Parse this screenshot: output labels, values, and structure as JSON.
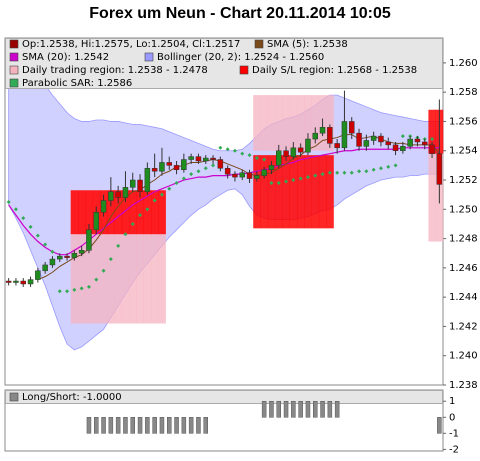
{
  "chart_data": [
    {
      "type": "candlestick",
      "title": "Forex um Neun - Chart 20.11.2014 10:05",
      "ylim": [
        1.238,
        1.2617
      ],
      "yticks": [
        1.238,
        {
          "value": 1.24,
          "label": "1.240"
        },
        1.242,
        1.244,
        1.246,
        1.248,
        {
          "value": 1.25,
          "label": "1.250"
        },
        1.252,
        1.254,
        1.256,
        1.258,
        {
          "value": 1.26,
          "label": "1.260"
        }
      ],
      "candles": {
        "name": "Op:1.2538, Hi:1.2575, Lo:1.2504, Cl:1.2517",
        "color": "#990000",
        "up_color": "#1e8c1e",
        "down_color": "#cc0000",
        "open": [
          1.2451,
          1.245,
          1.2451,
          1.2449,
          1.2452,
          1.2458,
          1.2462,
          1.2466,
          1.2468,
          1.2467,
          1.247,
          1.2472,
          1.2486,
          1.2498,
          1.2506,
          1.2512,
          1.2508,
          1.2515,
          1.252,
          1.2512,
          1.2528,
          1.2526,
          1.2532,
          1.253,
          1.2527,
          1.2534,
          1.2536,
          1.2533,
          1.2535,
          1.2534,
          1.2528,
          1.2524,
          1.2522,
          1.2525,
          1.2521,
          1.2523,
          1.2527,
          1.253,
          1.254,
          1.2536,
          1.2542,
          1.2539,
          1.2548,
          1.2552,
          1.2556,
          1.2545,
          1.2542,
          1.256,
          1.2552,
          1.2543,
          1.2547,
          1.255,
          1.2546,
          1.2544,
          1.254,
          1.2543,
          1.2548,
          1.2546,
          1.2544,
          1.2538
        ],
        "high": [
          1.2453,
          1.2453,
          1.2453,
          1.2454,
          1.246,
          1.2464,
          1.2468,
          1.247,
          1.247,
          1.2472,
          1.2475,
          1.249,
          1.2502,
          1.251,
          1.2522,
          1.2516,
          1.2526,
          1.2525,
          1.2524,
          1.2532,
          1.2538,
          1.2542,
          1.2536,
          1.2533,
          1.2538,
          1.2538,
          1.2538,
          1.2537,
          1.2537,
          1.2536,
          1.253,
          1.2526,
          1.2527,
          1.2527,
          1.2526,
          1.2529,
          1.2533,
          1.2544,
          1.2543,
          1.2546,
          1.2545,
          1.2552,
          1.2556,
          1.2562,
          1.2558,
          1.2548,
          1.2581,
          1.2563,
          1.2555,
          1.2551,
          1.2553,
          1.2552,
          1.2549,
          1.2546,
          1.2546,
          1.255,
          1.255,
          1.2548,
          1.2546,
          1.2575
        ],
        "low": [
          1.2448,
          1.2448,
          1.2447,
          1.2447,
          1.245,
          1.2456,
          1.246,
          1.2464,
          1.2465,
          1.2465,
          1.2468,
          1.247,
          1.2483,
          1.2495,
          1.2502,
          1.2504,
          1.2505,
          1.2512,
          1.2508,
          1.251,
          1.2522,
          1.2523,
          1.2527,
          1.2524,
          1.2525,
          1.2531,
          1.2531,
          1.2531,
          1.2531,
          1.2526,
          1.2521,
          1.2519,
          1.252,
          1.2518,
          1.2519,
          1.2521,
          1.2524,
          1.2528,
          1.2533,
          1.2534,
          1.2536,
          1.2537,
          1.2545,
          1.255,
          1.2542,
          1.2538,
          1.254,
          1.2548,
          1.254,
          1.254,
          1.2544,
          1.2543,
          1.2541,
          1.2537,
          1.2538,
          1.2541,
          1.2543,
          1.2541,
          1.2535,
          1.2504
        ],
        "close": [
          1.245,
          1.2451,
          1.2449,
          1.2452,
          1.2458,
          1.2462,
          1.2466,
          1.2468,
          1.2467,
          1.247,
          1.2472,
          1.2486,
          1.2498,
          1.2506,
          1.2512,
          1.2508,
          1.2515,
          1.252,
          1.2512,
          1.2528,
          1.2526,
          1.2532,
          1.253,
          1.2527,
          1.2534,
          1.2536,
          1.2533,
          1.2535,
          1.2534,
          1.2528,
          1.2524,
          1.2522,
          1.2525,
          1.2521,
          1.2523,
          1.2527,
          1.253,
          1.254,
          1.2536,
          1.2542,
          1.2539,
          1.2548,
          1.2552,
          1.2556,
          1.2545,
          1.2542,
          1.256,
          1.2552,
          1.2543,
          1.2547,
          1.255,
          1.2546,
          1.2544,
          1.254,
          1.2543,
          1.2548,
          1.2546,
          1.2544,
          1.2538,
          1.2517
        ]
      },
      "sma5": {
        "name": "SMA (5): 1.2538",
        "color": "#7a4a1a",
        "values": [
          null,
          null,
          null,
          null,
          1.2452,
          1.2454,
          1.2457,
          1.2461,
          1.2464,
          1.2467,
          1.2469,
          1.2473,
          1.2479,
          1.2486,
          1.2495,
          1.2502,
          1.2508,
          1.2512,
          1.2513,
          1.2517,
          1.252,
          1.2524,
          1.2526,
          1.2529,
          1.253,
          1.2532,
          1.2532,
          1.2533,
          1.2534,
          1.2533,
          1.2531,
          1.2529,
          1.2527,
          1.2524,
          1.2523,
          1.2524,
          1.2525,
          1.2528,
          1.2531,
          1.2535,
          1.2537,
          1.2541,
          1.2543,
          1.2547,
          1.2548,
          1.2549,
          1.2551,
          1.2551,
          1.2548,
          1.2549,
          1.255,
          1.2548,
          1.2546,
          1.2545,
          1.2545,
          1.2544,
          1.2544,
          1.2544,
          1.2544,
          1.2538
        ]
      },
      "sma20": {
        "name": "SMA (20): 1.2542",
        "color": "#cc00cc",
        "values": [
          1.2503,
          1.2496,
          1.2489,
          1.2483,
          1.2478,
          1.2474,
          1.2471,
          1.2469,
          1.2469,
          1.2472,
          1.2475,
          1.2479,
          1.2483,
          1.2487,
          1.2491,
          1.2495,
          1.2499,
          1.2503,
          1.2506,
          1.2509,
          1.2512,
          1.2514,
          1.2516,
          1.2518,
          1.252,
          1.2521,
          1.2522,
          1.2522,
          1.2523,
          1.2523,
          1.2523,
          1.2524,
          1.2524,
          1.2525,
          1.2526,
          1.2527,
          1.2528,
          1.253,
          1.2531,
          1.2532,
          1.2534,
          1.2535,
          1.2536,
          1.2537,
          1.2538,
          1.2539,
          1.254,
          1.254,
          1.2541,
          1.2541,
          1.2541,
          1.2541,
          1.2541,
          1.2541,
          1.2542,
          1.2542,
          1.2542,
          1.2542,
          1.2542,
          1.2542
        ]
      },
      "bollinger": {
        "name": "Bollinger (20, 2): 1.2524 - 1.2560",
        "color": "#9999ff",
        "upper": [
          1.2616,
          1.261,
          1.2603,
          1.2596,
          1.259,
          1.2585,
          1.2578,
          1.2572,
          1.2566,
          1.2562,
          1.256,
          1.256,
          1.2561,
          1.2561,
          1.256,
          1.256,
          1.2559,
          1.2558,
          1.2558,
          1.2557,
          1.2556,
          1.2555,
          1.2553,
          1.2551,
          1.2549,
          1.2547,
          1.2545,
          1.2543,
          1.2541,
          1.254,
          1.254,
          1.254,
          1.2541,
          1.2545,
          1.255,
          1.2555,
          1.2558,
          1.256,
          1.2562,
          1.2563,
          1.2565,
          1.2568,
          1.2571,
          1.2575,
          1.2578,
          1.2578,
          1.2576,
          1.2574,
          1.2572,
          1.257,
          1.2568,
          1.2566,
          1.2565,
          1.2564,
          1.2563,
          1.2562,
          1.2561,
          1.256,
          1.256,
          1.256
        ],
        "lower": [
          1.2503,
          1.2494,
          1.2484,
          1.2472,
          1.246,
          1.2448,
          1.2434,
          1.242,
          1.2408,
          1.2404,
          1.2406,
          1.241,
          1.2414,
          1.2418,
          1.2426,
          1.2434,
          1.2442,
          1.245,
          1.2457,
          1.2463,
          1.2469,
          1.2475,
          1.2481,
          1.2486,
          1.2491,
          1.2496,
          1.25,
          1.2503,
          1.2507,
          1.251,
          1.2513,
          1.2514,
          1.251,
          1.2502,
          1.2496,
          1.2494,
          1.2493,
          1.2493,
          1.2493,
          1.2493,
          1.2494,
          1.2495,
          1.2497,
          1.2499,
          1.25,
          1.2503,
          1.2507,
          1.251,
          1.2513,
          1.2516,
          1.2518,
          1.252,
          1.2521,
          1.2522,
          1.2522,
          1.2523,
          1.2523,
          1.2524,
          1.2524,
          1.2524
        ]
      },
      "trading_region": {
        "name": "Daily trading region: 1.2538 - 1.2478",
        "color": "#f5b3c0",
        "high": [
          null,
          null,
          null,
          null,
          null,
          null,
          null,
          null,
          null,
          1.2513,
          1.2513,
          1.2513,
          1.2513,
          1.2513,
          1.2513,
          1.2513,
          1.2513,
          1.2513,
          1.2513,
          1.2513,
          1.2513,
          1.2513,
          null,
          null,
          null,
          null,
          null,
          null,
          null,
          null,
          null,
          null,
          null,
          null,
          1.2578,
          1.2578,
          1.2578,
          1.2578,
          1.2578,
          1.2578,
          1.2578,
          1.2578,
          1.2578,
          1.2578,
          1.2578,
          null,
          null,
          null,
          null,
          null,
          null,
          null,
          null,
          null,
          null,
          null,
          null,
          null,
          1.2538,
          1.2538
        ],
        "low": [
          null,
          null,
          null,
          null,
          null,
          null,
          null,
          null,
          null,
          1.2422,
          1.2422,
          1.2422,
          1.2422,
          1.2422,
          1.2422,
          1.2422,
          1.2422,
          1.2422,
          1.2422,
          1.2422,
          1.2422,
          1.2422,
          null,
          null,
          null,
          null,
          null,
          null,
          null,
          null,
          null,
          null,
          null,
          null,
          1.254,
          1.254,
          1.254,
          1.254,
          1.254,
          1.254,
          1.254,
          1.254,
          1.254,
          1.254,
          1.254,
          null,
          null,
          null,
          null,
          null,
          null,
          null,
          null,
          null,
          null,
          null,
          null,
          null,
          1.2478,
          1.2478
        ]
      },
      "sl_region": {
        "name": "Daily S/L region: 1.2568 - 1.2538",
        "color": "#ff0000",
        "high": [
          null,
          null,
          null,
          null,
          null,
          null,
          null,
          null,
          null,
          1.2513,
          1.2513,
          1.2513,
          1.2513,
          1.2513,
          1.2513,
          1.2513,
          1.2513,
          1.2513,
          1.2513,
          1.2513,
          1.2513,
          1.2513,
          null,
          null,
          null,
          null,
          null,
          null,
          null,
          null,
          null,
          null,
          null,
          null,
          1.2537,
          1.2537,
          1.2537,
          1.2537,
          1.2537,
          1.2537,
          1.2537,
          1.2537,
          1.2537,
          1.2537,
          1.2537,
          null,
          null,
          null,
          null,
          null,
          null,
          null,
          null,
          null,
          null,
          null,
          null,
          null,
          1.2568,
          1.2568
        ],
        "low": [
          null,
          null,
          null,
          null,
          null,
          null,
          null,
          null,
          null,
          1.2483,
          1.2483,
          1.2483,
          1.2483,
          1.2483,
          1.2483,
          1.2483,
          1.2483,
          1.2483,
          1.2483,
          1.2483,
          1.2483,
          1.2483,
          null,
          null,
          null,
          null,
          null,
          null,
          null,
          null,
          null,
          null,
          null,
          null,
          1.2487,
          1.2487,
          1.2487,
          1.2487,
          1.2487,
          1.2487,
          1.2487,
          1.2487,
          1.2487,
          1.2487,
          1.2487,
          null,
          null,
          null,
          null,
          null,
          null,
          null,
          null,
          null,
          null,
          null,
          null,
          null,
          1.2538,
          1.2538
        ]
      },
      "sar": {
        "name": "Parabolic SAR: 1.2586",
        "color": "#33aa55",
        "values": [
          1.2505,
          1.25,
          1.2494,
          1.2488,
          1.2482,
          1.2476,
          1.2471,
          1.2444,
          1.2444,
          1.2445,
          1.2446,
          1.2447,
          1.2452,
          1.2458,
          1.2466,
          1.2475,
          1.2483,
          1.249,
          1.2496,
          1.25,
          1.2506,
          1.251,
          1.2514,
          1.2518,
          1.2521,
          1.2524,
          1.2526,
          1.2528,
          1.253,
          1.2542,
          1.2541,
          1.254,
          1.2538,
          1.2537,
          1.2535,
          1.2534,
          1.2518,
          1.2518,
          1.2519,
          1.252,
          1.2521,
          1.2522,
          1.2523,
          1.2524,
          1.2525,
          1.2525,
          1.2525,
          1.2525,
          1.2526,
          1.2526,
          1.2527,
          1.2528,
          1.2529,
          1.253,
          1.255,
          1.255,
          1.2549,
          1.2548,
          1.2548,
          1.2586
        ]
      }
    },
    {
      "type": "bar",
      "ylim": [
        -2.1,
        1.7
      ],
      "yticks": [
        1,
        0,
        -1,
        -2
      ],
      "series": [
        {
          "name": "Long/Short: -1.0000",
          "color": "#888888",
          "values": [
            0,
            0,
            0,
            0,
            0,
            0,
            0,
            0,
            0,
            0,
            0,
            -1,
            -1,
            -1,
            -1,
            -1,
            -1,
            -1,
            -1,
            -1,
            -1,
            -1,
            -1,
            -1,
            -1,
            -1,
            -1,
            -1,
            0,
            0,
            0,
            0,
            0,
            0,
            0,
            1,
            1,
            1,
            1,
            1,
            1,
            1,
            1,
            1,
            1,
            1,
            0,
            0,
            0,
            0,
            0,
            0,
            0,
            0,
            0,
            0,
            0,
            0,
            0,
            -1
          ]
        }
      ]
    }
  ]
}
